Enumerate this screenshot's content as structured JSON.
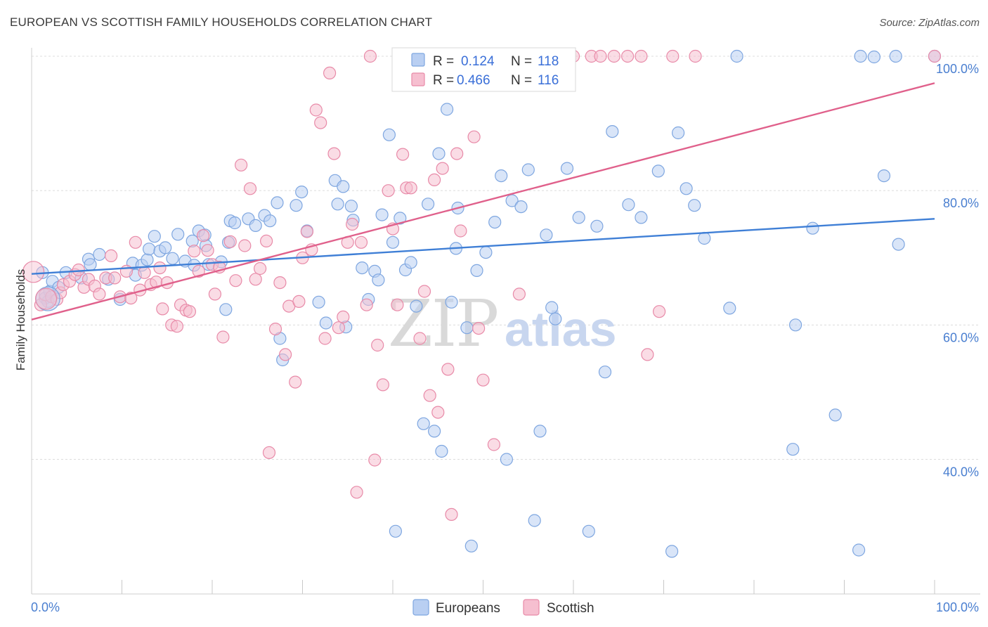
{
  "title": "EUROPEAN VS SCOTTISH FAMILY HOUSEHOLDS CORRELATION CHART",
  "source": "Source: ZipAtlas.com",
  "watermark": {
    "zip": "ZIP",
    "atlas": "atlas"
  },
  "legend": {
    "r_label": "R =",
    "n_label": "N =",
    "rows": [
      {
        "r": "0.124",
        "n": "118",
        "color": "#7ea6e0",
        "fill": "#b9cff2"
      },
      {
        "r": "0.466",
        "n": "116",
        "color": "#e88aa8",
        "fill": "#f6bfd0"
      }
    ]
  },
  "bottom_legend": [
    {
      "label": "Europeans",
      "color": "#7ea6e0",
      "fill": "#b9cff2"
    },
    {
      "label": "Scottish",
      "color": "#e88aa8",
      "fill": "#f6bfd0"
    }
  ],
  "chart_data": {
    "type": "scatter",
    "title": "EUROPEAN VS SCOTTISH FAMILY HOUSEHOLDS CORRELATION CHART",
    "xlabel": "",
    "ylabel": "Family Households",
    "xlim": [
      0,
      100
    ],
    "ylim": [
      20,
      102
    ],
    "x_tick_labels": [
      "0.0%",
      "100.0%"
    ],
    "y_ticks": [
      40,
      60,
      80,
      100
    ],
    "y_tick_labels": [
      "40.0%",
      "60.0%",
      "80.0%",
      "100.0%"
    ],
    "grid": true,
    "legend_position": "top-center",
    "series": [
      {
        "name": "Europeans",
        "color": "#3f7fd6",
        "point_color": "#7ea6e0",
        "point_fill": "#b9cff2",
        "trend": {
          "x": [
            0,
            100
          ],
          "y": [
            67.6,
            75.8
          ]
        },
        "points": [
          [
            1.5,
            64.0
          ],
          [
            1.8,
            63.5
          ],
          [
            2.0,
            65.0
          ],
          [
            2.3,
            66.5
          ],
          [
            3.0,
            65.6
          ],
          [
            1.2,
            67.8
          ],
          [
            3.8,
            67.8
          ],
          [
            5.5,
            67.0
          ],
          [
            6.3,
            69.8
          ],
          [
            6.5,
            69.0
          ],
          [
            7.5,
            70.5
          ],
          [
            8.5,
            66.8
          ],
          [
            9.8,
            63.8
          ],
          [
            11.2,
            69.2
          ],
          [
            11.5,
            67.4
          ],
          [
            12.2,
            68.9
          ],
          [
            12.8,
            69.7
          ],
          [
            13.0,
            71.3
          ],
          [
            13.6,
            73.2
          ],
          [
            14.2,
            71.0
          ],
          [
            14.8,
            71.5
          ],
          [
            15.6,
            69.9
          ],
          [
            16.2,
            73.5
          ],
          [
            17.0,
            69.5
          ],
          [
            17.8,
            72.5
          ],
          [
            18.0,
            68.9
          ],
          [
            18.5,
            74.0
          ],
          [
            19.2,
            73.4
          ],
          [
            19.3,
            71.8
          ],
          [
            19.6,
            69.0
          ],
          [
            21.0,
            69.4
          ],
          [
            21.5,
            62.3
          ],
          [
            21.8,
            72.3
          ],
          [
            22.0,
            75.5
          ],
          [
            22.5,
            75.2
          ],
          [
            24.0,
            75.8
          ],
          [
            24.8,
            74.8
          ],
          [
            25.8,
            76.3
          ],
          [
            26.4,
            75.5
          ],
          [
            27.2,
            78.2
          ],
          [
            27.5,
            58.0
          ],
          [
            27.8,
            54.8
          ],
          [
            29.3,
            77.8
          ],
          [
            29.9,
            79.8
          ],
          [
            30.5,
            74.0
          ],
          [
            31.8,
            63.4
          ],
          [
            32.6,
            60.3
          ],
          [
            33.6,
            81.5
          ],
          [
            33.9,
            78.0
          ],
          [
            34.5,
            80.6
          ],
          [
            34.8,
            59.7
          ],
          [
            35.4,
            77.7
          ],
          [
            35.6,
            75.6
          ],
          [
            36.6,
            68.5
          ],
          [
            37.3,
            63.8
          ],
          [
            38.0,
            68.0
          ],
          [
            38.4,
            66.7
          ],
          [
            38.8,
            76.4
          ],
          [
            39.6,
            88.3
          ],
          [
            40.0,
            72.3
          ],
          [
            40.3,
            29.3
          ],
          [
            40.8,
            75.9
          ],
          [
            41.4,
            68.2
          ],
          [
            42.0,
            69.3
          ],
          [
            42.6,
            62.8
          ],
          [
            43.4,
            45.3
          ],
          [
            43.6,
            100.0
          ],
          [
            43.9,
            78.0
          ],
          [
            44.6,
            44.2
          ],
          [
            45.1,
            85.5
          ],
          [
            45.4,
            41.2
          ],
          [
            46.0,
            92.1
          ],
          [
            46.5,
            63.4
          ],
          [
            47.0,
            71.4
          ],
          [
            47.2,
            77.4
          ],
          [
            48.2,
            59.6
          ],
          [
            48.7,
            27.1
          ],
          [
            49.3,
            68.1
          ],
          [
            50.3,
            70.8
          ],
          [
            51.3,
            75.3
          ],
          [
            52.0,
            82.2
          ],
          [
            52.6,
            40.0
          ],
          [
            53.2,
            78.5
          ],
          [
            54.2,
            77.6
          ],
          [
            55.0,
            83.1
          ],
          [
            55.7,
            30.9
          ],
          [
            56.3,
            44.2
          ],
          [
            57.0,
            73.4
          ],
          [
            57.6,
            62.6
          ],
          [
            58.0,
            60.9
          ],
          [
            58.4,
            97.3
          ],
          [
            59.3,
            83.3
          ],
          [
            60.6,
            76.0
          ],
          [
            61.7,
            29.3
          ],
          [
            62.6,
            74.7
          ],
          [
            63.5,
            53.0
          ],
          [
            64.3,
            88.8
          ],
          [
            66.1,
            77.9
          ],
          [
            67.5,
            76.0
          ],
          [
            69.4,
            82.9
          ],
          [
            70.9,
            26.3
          ],
          [
            71.6,
            88.6
          ],
          [
            72.5,
            80.3
          ],
          [
            73.4,
            77.8
          ],
          [
            74.5,
            72.9
          ],
          [
            77.3,
            62.5
          ],
          [
            78.1,
            100.0
          ],
          [
            84.3,
            41.5
          ],
          [
            84.6,
            60.0
          ],
          [
            86.5,
            74.4
          ],
          [
            89.0,
            46.6
          ],
          [
            91.6,
            26.5
          ],
          [
            91.8,
            100.0
          ],
          [
            93.3,
            99.9
          ],
          [
            94.4,
            82.2
          ],
          [
            95.7,
            100.0
          ],
          [
            96.0,
            72.0
          ],
          [
            100.0,
            100.0
          ]
        ]
      },
      {
        "name": "Scottish",
        "color": "#e0608b",
        "point_color": "#e88aa8",
        "point_fill": "#f6bfd0",
        "trend": {
          "x": [
            0,
            100
          ],
          "y": [
            60.8,
            96.0
          ]
        },
        "points": [
          [
            1.0,
            63.0
          ],
          [
            1.5,
            64.5
          ],
          [
            2.2,
            64.2
          ],
          [
            2.8,
            63.8
          ],
          [
            3.2,
            64.8
          ],
          [
            3.5,
            66.0
          ],
          [
            4.2,
            66.5
          ],
          [
            4.8,
            67.5
          ],
          [
            5.2,
            68.2
          ],
          [
            5.8,
            65.6
          ],
          [
            6.3,
            66.8
          ],
          [
            7.0,
            65.8
          ],
          [
            7.5,
            64.6
          ],
          [
            8.2,
            67.0
          ],
          [
            8.8,
            70.3
          ],
          [
            9.2,
            67.0
          ],
          [
            9.8,
            64.2
          ],
          [
            10.5,
            68.0
          ],
          [
            11.0,
            64.0
          ],
          [
            11.5,
            72.3
          ],
          [
            12.0,
            65.2
          ],
          [
            12.5,
            67.8
          ],
          [
            13.2,
            66.0
          ],
          [
            13.8,
            66.4
          ],
          [
            14.2,
            68.5
          ],
          [
            14.5,
            62.4
          ],
          [
            15.0,
            66.3
          ],
          [
            15.5,
            60.0
          ],
          [
            16.1,
            59.8
          ],
          [
            16.5,
            63.0
          ],
          [
            17.1,
            62.2
          ],
          [
            17.5,
            62.0
          ],
          [
            18.0,
            71.0
          ],
          [
            18.5,
            68.0
          ],
          [
            19.0,
            73.3
          ],
          [
            19.5,
            71.1
          ],
          [
            20.0,
            69.0
          ],
          [
            20.3,
            64.6
          ],
          [
            20.8,
            68.6
          ],
          [
            21.2,
            58.2
          ],
          [
            22.0,
            72.4
          ],
          [
            22.6,
            66.6
          ],
          [
            23.2,
            83.8
          ],
          [
            23.6,
            71.8
          ],
          [
            24.2,
            80.3
          ],
          [
            24.8,
            66.8
          ],
          [
            25.3,
            68.4
          ],
          [
            26.0,
            72.5
          ],
          [
            26.3,
            41.0
          ],
          [
            27.0,
            59.4
          ],
          [
            27.5,
            66.3
          ],
          [
            28.1,
            55.6
          ],
          [
            28.5,
            62.8
          ],
          [
            29.2,
            51.5
          ],
          [
            29.6,
            63.5
          ],
          [
            30.0,
            70.0
          ],
          [
            30.5,
            73.9
          ],
          [
            31.0,
            71.2
          ],
          [
            31.5,
            92.0
          ],
          [
            32.0,
            90.1
          ],
          [
            32.5,
            58.0
          ],
          [
            33.0,
            97.5
          ],
          [
            33.5,
            85.5
          ],
          [
            34.0,
            59.6
          ],
          [
            34.5,
            61.2
          ],
          [
            35.0,
            72.3
          ],
          [
            35.5,
            75.0
          ],
          [
            36.0,
            35.1
          ],
          [
            36.5,
            72.3
          ],
          [
            37.1,
            63.0
          ],
          [
            37.5,
            100.0
          ],
          [
            38.0,
            39.9
          ],
          [
            38.3,
            57.0
          ],
          [
            38.9,
            51.1
          ],
          [
            39.5,
            80.0
          ],
          [
            40.0,
            74.3
          ],
          [
            40.5,
            63.0
          ],
          [
            41.1,
            85.4
          ],
          [
            41.5,
            80.4
          ],
          [
            42.0,
            80.4
          ],
          [
            42.5,
            100.0
          ],
          [
            43.0,
            58.0
          ],
          [
            43.5,
            65.0
          ],
          [
            44.1,
            49.5
          ],
          [
            44.6,
            81.6
          ],
          [
            45.0,
            47.0
          ],
          [
            45.5,
            83.3
          ],
          [
            46.1,
            53.4
          ],
          [
            46.5,
            31.8
          ],
          [
            47.1,
            85.5
          ],
          [
            47.5,
            74.0
          ],
          [
            48.2,
            100.0
          ],
          [
            49.0,
            88.0
          ],
          [
            49.5,
            59.5
          ],
          [
            50.0,
            51.8
          ],
          [
            50.5,
            100.0
          ],
          [
            51.2,
            42.2
          ],
          [
            52.0,
            100.0
          ],
          [
            52.5,
            100.0
          ],
          [
            53.1,
            100.0
          ],
          [
            54.0,
            64.6
          ],
          [
            55.0,
            100.0
          ],
          [
            56.0,
            100.0
          ],
          [
            57.2,
            100.0
          ],
          [
            58.0,
            100.0
          ],
          [
            60.0,
            100.0
          ],
          [
            62.0,
            100.0
          ],
          [
            63.0,
            100.0
          ],
          [
            64.5,
            100.0
          ],
          [
            66.0,
            100.0
          ],
          [
            67.5,
            100.0
          ],
          [
            68.2,
            55.6
          ],
          [
            69.5,
            62.0
          ],
          [
            71.0,
            100.0
          ],
          [
            73.5,
            100.0
          ],
          [
            100.0,
            100.0
          ]
        ]
      }
    ]
  }
}
